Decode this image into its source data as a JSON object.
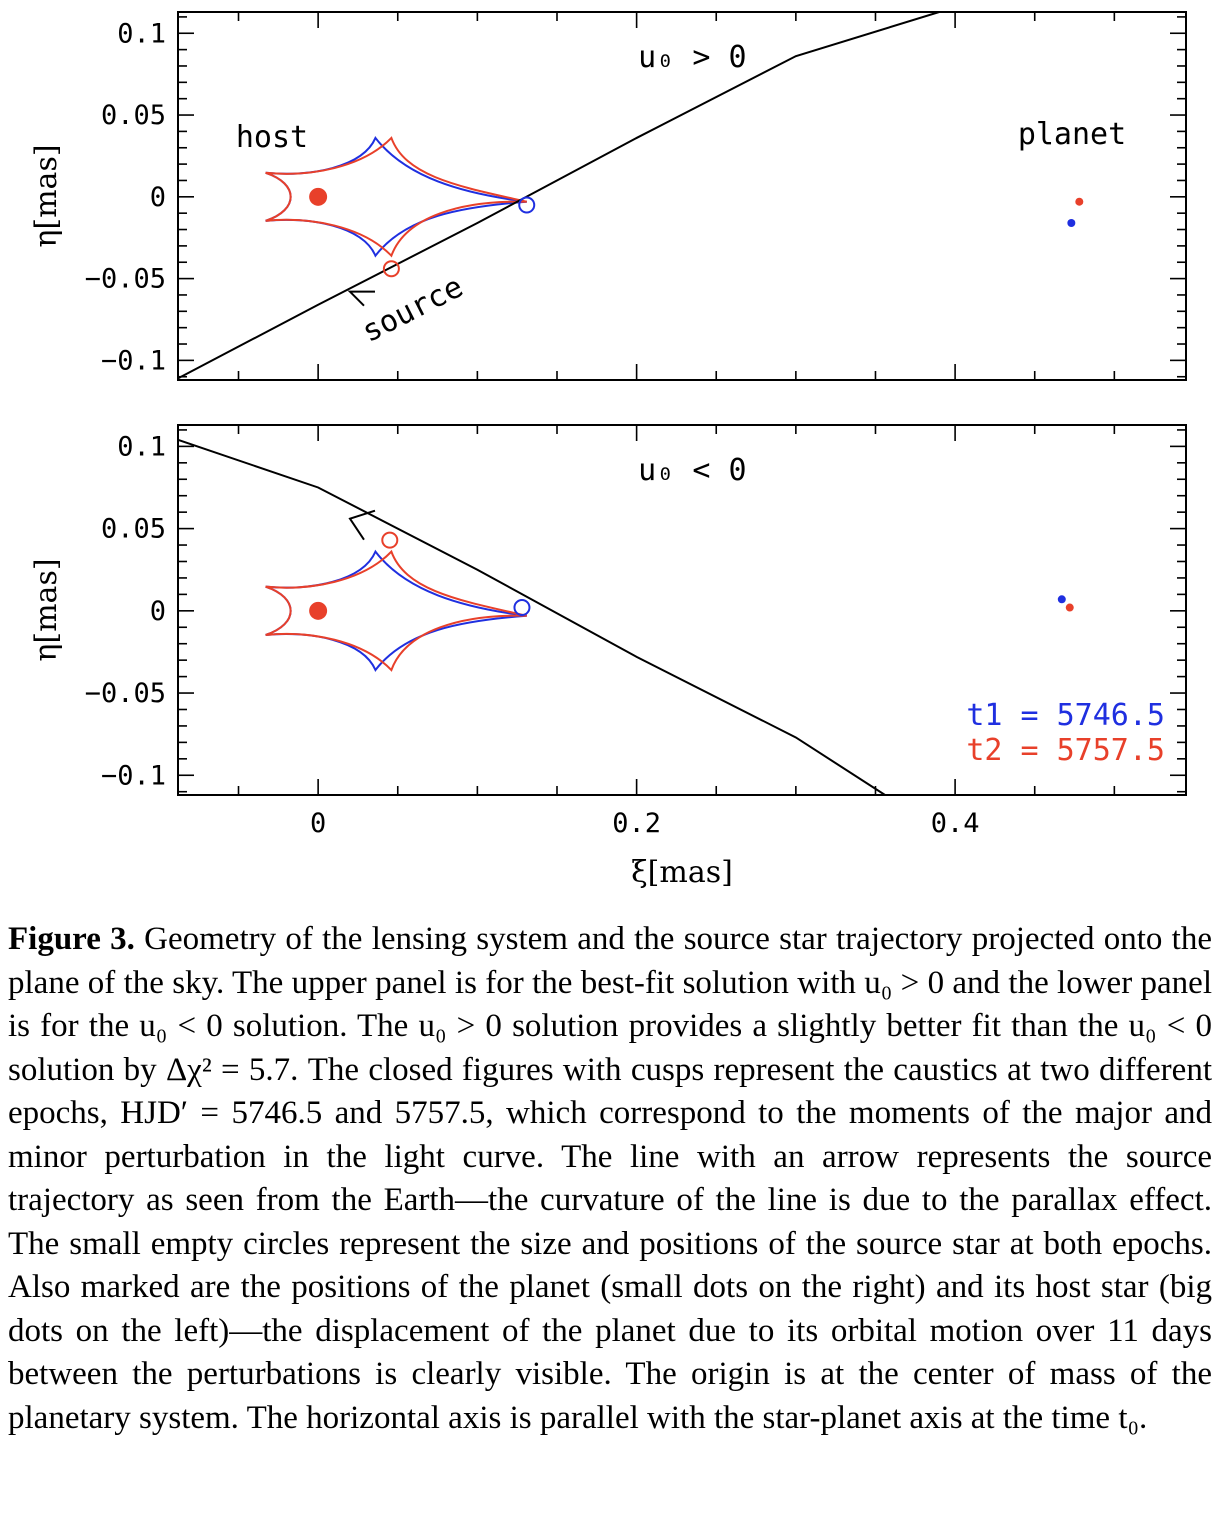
{
  "colors": {
    "epoch1": "#1f2fe0",
    "epoch2": "#e8402a",
    "trajectory": "#000000"
  },
  "chart_data": [
    {
      "type": "scatter",
      "panel": "upper",
      "title": "",
      "annotation": "u₀ > 0",
      "ylabel": "η[mas]",
      "xlabel": "",
      "xlim": [
        -0.088,
        0.545
      ],
      "ylim": [
        -0.112,
        0.113
      ],
      "xticks": [
        0,
        0.2,
        0.4
      ],
      "yticks": [
        "0.1",
        "0.05",
        "0",
        "−0.05",
        "−0.1"
      ],
      "labels": {
        "host": "host",
        "planet": "planet",
        "source": "source"
      },
      "trajectory": {
        "points": [
          [
            -0.088,
            -0.111
          ],
          [
            0.0,
            -0.066
          ],
          [
            0.1,
            -0.016
          ],
          [
            0.2,
            0.036
          ],
          [
            0.3,
            0.086
          ],
          [
            0.39,
            0.113
          ]
        ],
        "arrow_at": [
          0.02,
          -0.058
        ],
        "direction": "left"
      },
      "host": {
        "x": 0,
        "y": 0
      },
      "caustics": [
        {
          "name": "t1 = 5746.5",
          "shift_y": 0.0
        },
        {
          "name": "t2 = 5757.5",
          "shift_y": 0.0
        }
      ],
      "source_circles": [
        {
          "epoch": "t1",
          "x": 0.131,
          "y": -0.005
        },
        {
          "epoch": "t2",
          "x": 0.046,
          "y": -0.044
        }
      ],
      "planet": [
        {
          "epoch": "t1",
          "x": 0.473,
          "y": -0.016
        },
        {
          "epoch": "t2",
          "x": 0.478,
          "y": -0.003
        }
      ]
    },
    {
      "type": "scatter",
      "panel": "lower",
      "title": "",
      "annotation": "u₀ < 0",
      "ylabel": "η[mas]",
      "xlabel": "ξ[mas]",
      "xlim": [
        -0.088,
        0.545
      ],
      "ylim": [
        -0.112,
        0.113
      ],
      "xticks": [
        0,
        0.2,
        0.4
      ],
      "yticks": [
        "0.1",
        "0.05",
        "0",
        "−0.05",
        "−0.1"
      ],
      "trajectory": {
        "points": [
          [
            -0.088,
            0.104
          ],
          [
            0.0,
            0.075
          ],
          [
            0.1,
            0.025
          ],
          [
            0.2,
            -0.028
          ],
          [
            0.3,
            -0.077
          ],
          [
            0.356,
            -0.112
          ]
        ],
        "arrow_at": [
          0.02,
          0.056
        ],
        "direction": "left"
      },
      "host": {
        "x": 0,
        "y": 0
      },
      "caustics": [
        {
          "name": "t1 = 5746.5",
          "shift_y": 0.0
        },
        {
          "name": "t2 = 5757.5",
          "shift_y": 0.0
        }
      ],
      "source_circles": [
        {
          "epoch": "t1",
          "x": 0.128,
          "y": 0.002
        },
        {
          "epoch": "t2",
          "x": 0.045,
          "y": 0.043
        }
      ],
      "planet": [
        {
          "epoch": "t1",
          "x": 0.467,
          "y": 0.007
        },
        {
          "epoch": "t2",
          "x": 0.472,
          "y": 0.002
        }
      ],
      "legend": [
        "t1 = 5746.5",
        "t2 = 5757.5"
      ]
    }
  ],
  "caption": {
    "label": "Figure 3.",
    "text": " Geometry of the lensing system and the source star trajectory projected onto the plane of the sky. The upper panel is for the best-fit solution with u₀ > 0 and the lower panel is for the u₀ < 0 solution. The u₀ > 0 solution provides a slightly better fit than the u₀ < 0 solution by Δχ² = 5.7. The closed figures with cusps represent the caustics at two different epochs, HJD′ = 5746.5 and 5757.5, which correspond to the moments of the major and minor perturbation in the light curve. The line with an arrow represents the source trajectory as seen from the Earth—the curvature of the line is due to the parallax effect. The small empty circles represent the size and positions of the source star at both epochs. Also marked are the positions of the planet (small dots on the right) and its host star (big dots on the left)—the displacement of the planet due to its orbital motion over 11 days between the perturbations is clearly visible. The origin is at the center of mass of the planetary system. The horizontal axis is parallel with the star-planet axis at the time t₀."
  }
}
